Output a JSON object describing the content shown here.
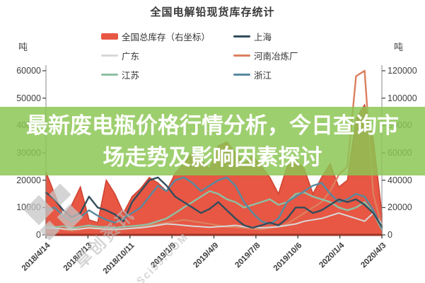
{
  "title": "全国电解铅现货库存统计",
  "banner": {
    "line1": "最新废电瓶价格行情分析，今日查询市",
    "line2": "场走势及影响因素探讨",
    "bg_color": "#8cc653",
    "text_color": "#ffffff"
  },
  "axes": {
    "left_unit": "吨",
    "right_unit": "吨",
    "left_ticks": [
      "60000",
      "50000",
      "40000",
      "30000",
      "20000",
      "10000",
      "0"
    ],
    "right_ticks": [
      "120000",
      "100000",
      "80000",
      "60000",
      "40000",
      "20000",
      "0"
    ]
  },
  "legend": [
    {
      "label": "全国总库存（右坐标）",
      "color": "#e75744",
      "type": "bar"
    },
    {
      "label": "上海",
      "color": "#334d5c",
      "type": "line"
    },
    {
      "label": "广东",
      "color": "#d8d8d8",
      "type": "line"
    },
    {
      "label": "河南冶炼厂",
      "color": "#dc7f5e",
      "type": "line"
    },
    {
      "label": "江苏",
      "color": "#8ec0a4",
      "type": "line"
    },
    {
      "label": "浙江",
      "color": "#578a9e",
      "type": "line"
    }
  ],
  "watermark": {
    "logo": "diamond-logo",
    "text_cn": "卓创资讯",
    "text_en": "Sci99.COM"
  },
  "chart_data": {
    "type": "area",
    "title": "全国电解铅现货库存统计",
    "x_range": [
      "2018/4/14",
      "2020/4/3"
    ],
    "x_labels": [
      "2018/4/14",
      "2018/7/13",
      "2018/10/11",
      "2019/1/9",
      "2019/4/9",
      "2019/7/8",
      "2019/10/6",
      "2020/1/4",
      "2020/4/3"
    ],
    "x_count": 40,
    "ylim_left": [
      0,
      60000
    ],
    "ylim_right": [
      0,
      120000
    ],
    "ylabel_left": "吨",
    "ylabel_right": "吨",
    "grid": false,
    "legend_position": "top",
    "series": [
      {
        "name": "全国总库存（右坐标）",
        "axis": "right",
        "type": "area",
        "color": "#e75744",
        "stroke": "#cf4533",
        "values": [
          46000,
          30000,
          14000,
          22000,
          35000,
          11000,
          9000,
          40000,
          30000,
          16000,
          28000,
          34000,
          42000,
          38000,
          32000,
          45000,
          52000,
          60000,
          55000,
          48000,
          65000,
          68000,
          60000,
          52000,
          58000,
          50000,
          42000,
          30000,
          50000,
          55000,
          48000,
          30000,
          42000,
          52000,
          35000,
          40000,
          85000,
          95000,
          70000,
          16000
        ]
      },
      {
        "name": "河南冶炼厂",
        "axis": "left",
        "type": "line",
        "color": "#dc7f5e",
        "values": [
          4000,
          3000,
          2000,
          1500,
          2000,
          3000,
          2500,
          2000,
          1800,
          2000,
          2500,
          3000,
          3500,
          4000,
          4500,
          5000,
          5500,
          5000,
          4500,
          4000,
          3500,
          3000,
          2800,
          2500,
          2200,
          2000,
          2500,
          3000,
          4000,
          6000,
          8000,
          10000,
          12000,
          16000,
          22000,
          25000,
          58000,
          60000,
          15000,
          3000
        ]
      },
      {
        "name": "广东",
        "axis": "left",
        "type": "line",
        "color": "#d8d8d8",
        "values": [
          2600,
          2400,
          2200,
          2000,
          2200,
          2500,
          2300,
          2100,
          2000,
          2200,
          2400,
          2600,
          3000,
          3500,
          4000,
          3800,
          3500,
          3200,
          3000,
          2800,
          3000,
          3200,
          3500,
          3000,
          2800,
          2600,
          2800,
          3000,
          3500,
          4000,
          5000,
          5500,
          6000,
          7000,
          8000,
          7000,
          6000,
          5000,
          8000,
          4000
        ]
      },
      {
        "name": "江苏",
        "axis": "left",
        "type": "line",
        "color": "#8ec0a4",
        "values": [
          3000,
          2800,
          3200,
          2500,
          3000,
          3500,
          3000,
          2800,
          2600,
          3000,
          3200,
          3500,
          4000,
          5000,
          6000,
          8000,
          10000,
          12000,
          14000,
          16000,
          15000,
          13000,
          12000,
          10000,
          11000,
          12000,
          13000,
          11000,
          12000,
          15000,
          15500,
          14000,
          13000,
          12000,
          10000,
          9000,
          10000,
          12000,
          8000,
          2000
        ]
      },
      {
        "name": "浙江",
        "axis": "left",
        "type": "line",
        "color": "#578a9e",
        "values": [
          9000,
          10000,
          7000,
          5000,
          6500,
          9000,
          7000,
          5500,
          4500,
          6000,
          8000,
          10000,
          14000,
          18000,
          16000,
          20000,
          21000,
          19000,
          16000,
          18000,
          20000,
          21000,
          18000,
          12000,
          8000,
          5000,
          4000,
          6000,
          12000,
          14000,
          16000,
          18000,
          19000,
          15000,
          12000,
          13000,
          15000,
          14000,
          9000,
          2500
        ]
      },
      {
        "name": "上海",
        "axis": "left",
        "type": "line",
        "color": "#334d5c",
        "values": [
          15500,
          13000,
          9000,
          6500,
          8000,
          14000,
          10000,
          9000,
          7500,
          5000,
          12000,
          16000,
          20000,
          21000,
          18000,
          14000,
          12000,
          10000,
          8000,
          9500,
          12000,
          9000,
          6000,
          3500,
          2600,
          3500,
          4500,
          3500,
          6000,
          10000,
          10000,
          8000,
          9000,
          11000,
          13000,
          12000,
          13000,
          11000,
          8000,
          3000
        ]
      }
    ]
  }
}
